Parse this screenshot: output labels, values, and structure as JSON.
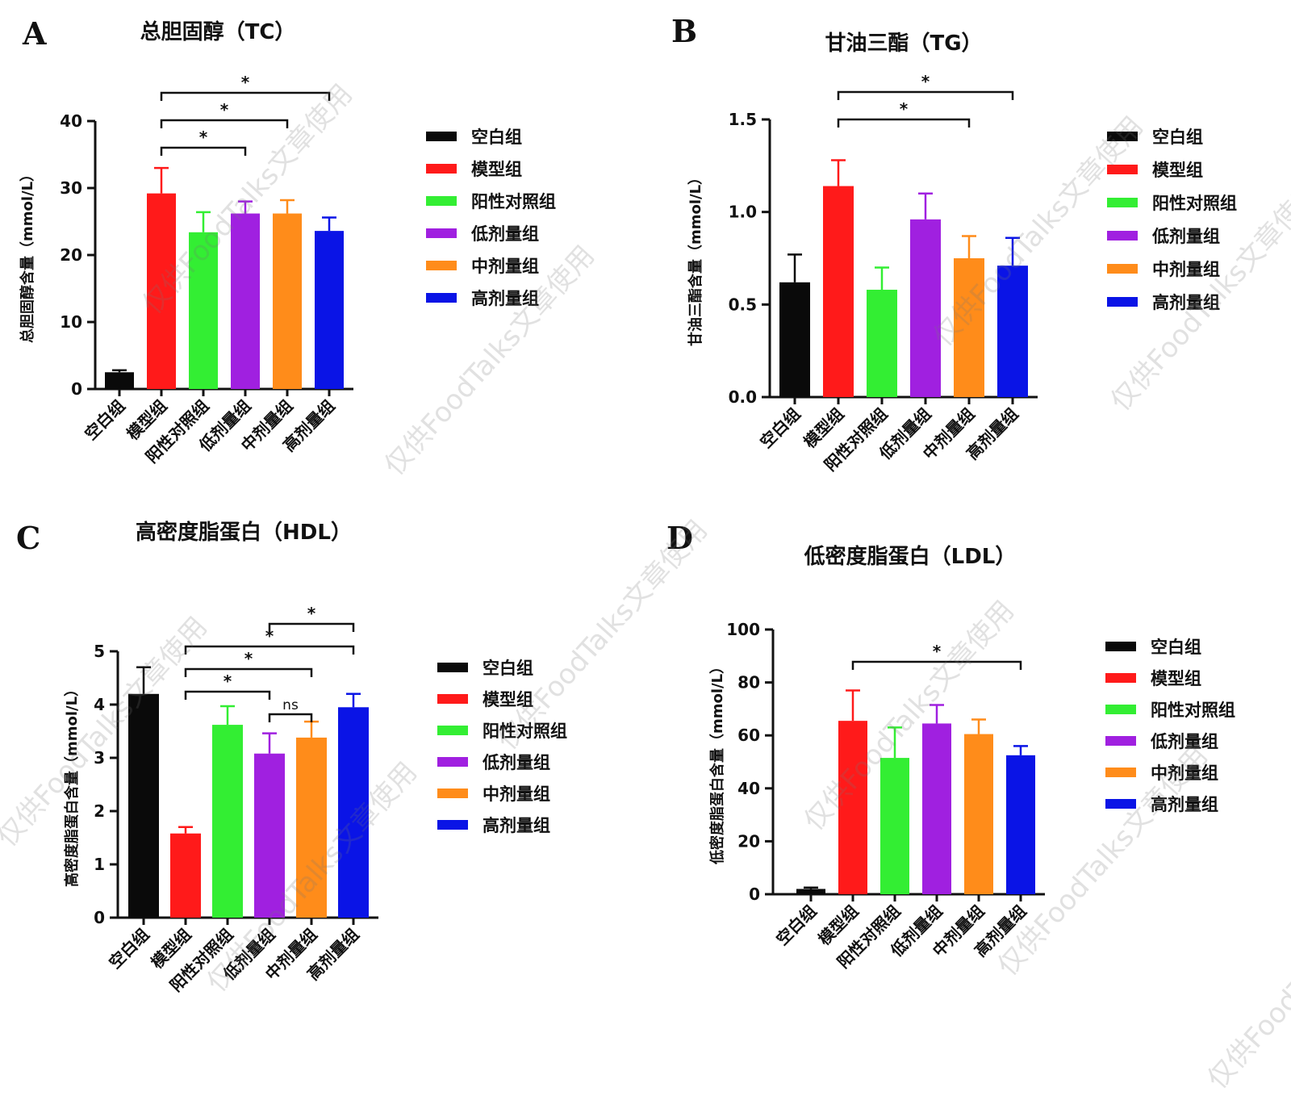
{
  "watermark_text": "仅供FoodTalks文章使用",
  "chart_data": [
    {
      "letter": "A",
      "title": "总胆固醇（TC）",
      "type": "bar",
      "ylabel": "总胆固醇含量（mmol/L）",
      "ylim": [
        0,
        40
      ],
      "yticks": [
        "0",
        "10",
        "20",
        "30",
        "40"
      ],
      "ytick_values": [
        0,
        10,
        20,
        30,
        40
      ],
      "categories": [
        "空白组",
        "模型组",
        "阳性对照组",
        "低剂量组",
        "中剂量组",
        "高剂量组"
      ],
      "values": [
        2.5,
        29.2,
        23.4,
        26.2,
        26.2,
        23.6
      ],
      "errors": [
        0.3,
        3.8,
        3.0,
        1.8,
        2.0,
        2.0
      ],
      "colors": [
        "#0a0a0a",
        "#ff1a1a",
        "#33ee33",
        "#a020e0",
        "#ff8c1a",
        "#0a14e6"
      ],
      "legend": [
        "空白组",
        "模型组",
        "阳性对照组",
        "低剂量组",
        "中剂量组",
        "高剂量组"
      ],
      "legend_position": "right",
      "significance": [
        {
          "from": 1,
          "to": 3,
          "label": "*",
          "level": 0
        },
        {
          "from": 1,
          "to": 4,
          "label": "*",
          "level": 1
        },
        {
          "from": 1,
          "to": 5,
          "label": "*",
          "level": 2
        }
      ]
    },
    {
      "letter": "B",
      "title": "甘油三酯（TG）",
      "type": "bar",
      "ylabel": "甘油三酯含量（mmol/L）",
      "ylim": [
        0,
        1.5
      ],
      "yticks": [
        "0.0",
        "0.5",
        "1.0",
        "1.5"
      ],
      "ytick_values": [
        0,
        0.5,
        1.0,
        1.5
      ],
      "categories": [
        "空白组",
        "模型组",
        "阳性对照组",
        "低剂量组",
        "中剂量组",
        "高剂量组"
      ],
      "values": [
        0.62,
        1.14,
        0.58,
        0.96,
        0.75,
        0.71
      ],
      "errors": [
        0.15,
        0.14,
        0.12,
        0.14,
        0.12,
        0.15
      ],
      "colors": [
        "#0a0a0a",
        "#ff1a1a",
        "#33ee33",
        "#a020e0",
        "#ff8c1a",
        "#0a14e6"
      ],
      "legend": [
        "空白组",
        "模型组",
        "阳性对照组",
        "低剂量组",
        "中剂量组",
        "高剂量组"
      ],
      "legend_position": "right",
      "significance": [
        {
          "from": 1,
          "to": 4,
          "label": "*",
          "level": 0
        },
        {
          "from": 1,
          "to": 5,
          "label": "*",
          "level": 1
        }
      ]
    },
    {
      "letter": "C",
      "title": "高密度脂蛋白（HDL）",
      "type": "bar",
      "ylabel": "高密度脂蛋白含量（mmol/L）",
      "ylim": [
        0,
        5
      ],
      "yticks": [
        "0",
        "1",
        "2",
        "3",
        "4",
        "5"
      ],
      "ytick_values": [
        0,
        1,
        2,
        3,
        4,
        5
      ],
      "categories": [
        "空白组",
        "模型组",
        "阳性对照组",
        "低剂量组",
        "中剂量组",
        "高剂量组"
      ],
      "values": [
        4.2,
        1.58,
        3.62,
        3.08,
        3.38,
        3.95
      ],
      "errors": [
        0.5,
        0.12,
        0.35,
        0.38,
        0.3,
        0.25
      ],
      "colors": [
        "#0a0a0a",
        "#ff1a1a",
        "#33ee33",
        "#a020e0",
        "#ff8c1a",
        "#0a14e6"
      ],
      "legend": [
        "空白组",
        "模型组",
        "阳性对照组",
        "低剂量组",
        "中剂量组",
        "高剂量组"
      ],
      "legend_position": "right",
      "significance": [
        {
          "from": 3,
          "to": 4,
          "label": "ns",
          "level": 0
        },
        {
          "from": 1,
          "to": 3,
          "label": "*",
          "level": 1
        },
        {
          "from": 1,
          "to": 4,
          "label": "*",
          "level": 2
        },
        {
          "from": 1,
          "to": 5,
          "label": "*",
          "level": 3
        },
        {
          "from": 3,
          "to": 5,
          "label": "*",
          "level": 4
        }
      ]
    },
    {
      "letter": "D",
      "title": "低密度脂蛋白（LDL）",
      "type": "bar",
      "ylabel": "低密度脂蛋白含量（mmol/L）",
      "ylim": [
        0,
        100
      ],
      "yticks": [
        "0",
        "20",
        "40",
        "60",
        "80",
        "100"
      ],
      "ytick_values": [
        0,
        20,
        40,
        60,
        80,
        100
      ],
      "categories": [
        "空白组",
        "模型组",
        "阳性对照组",
        "低剂量组",
        "中剂量组",
        "高剂量组"
      ],
      "values": [
        2.0,
        65.5,
        51.5,
        64.5,
        60.5,
        52.5
      ],
      "errors": [
        0.5,
        11.5,
        11.5,
        7.0,
        5.5,
        3.5
      ],
      "colors": [
        "#0a0a0a",
        "#ff1a1a",
        "#33ee33",
        "#a020e0",
        "#ff8c1a",
        "#0a14e6"
      ],
      "legend": [
        "空白组",
        "模型组",
        "阳性对照组",
        "低剂量组",
        "中剂量组",
        "高剂量组"
      ],
      "legend_position": "right",
      "significance": [
        {
          "from": 1,
          "to": 5,
          "label": "*",
          "level": 0
        }
      ]
    }
  ]
}
